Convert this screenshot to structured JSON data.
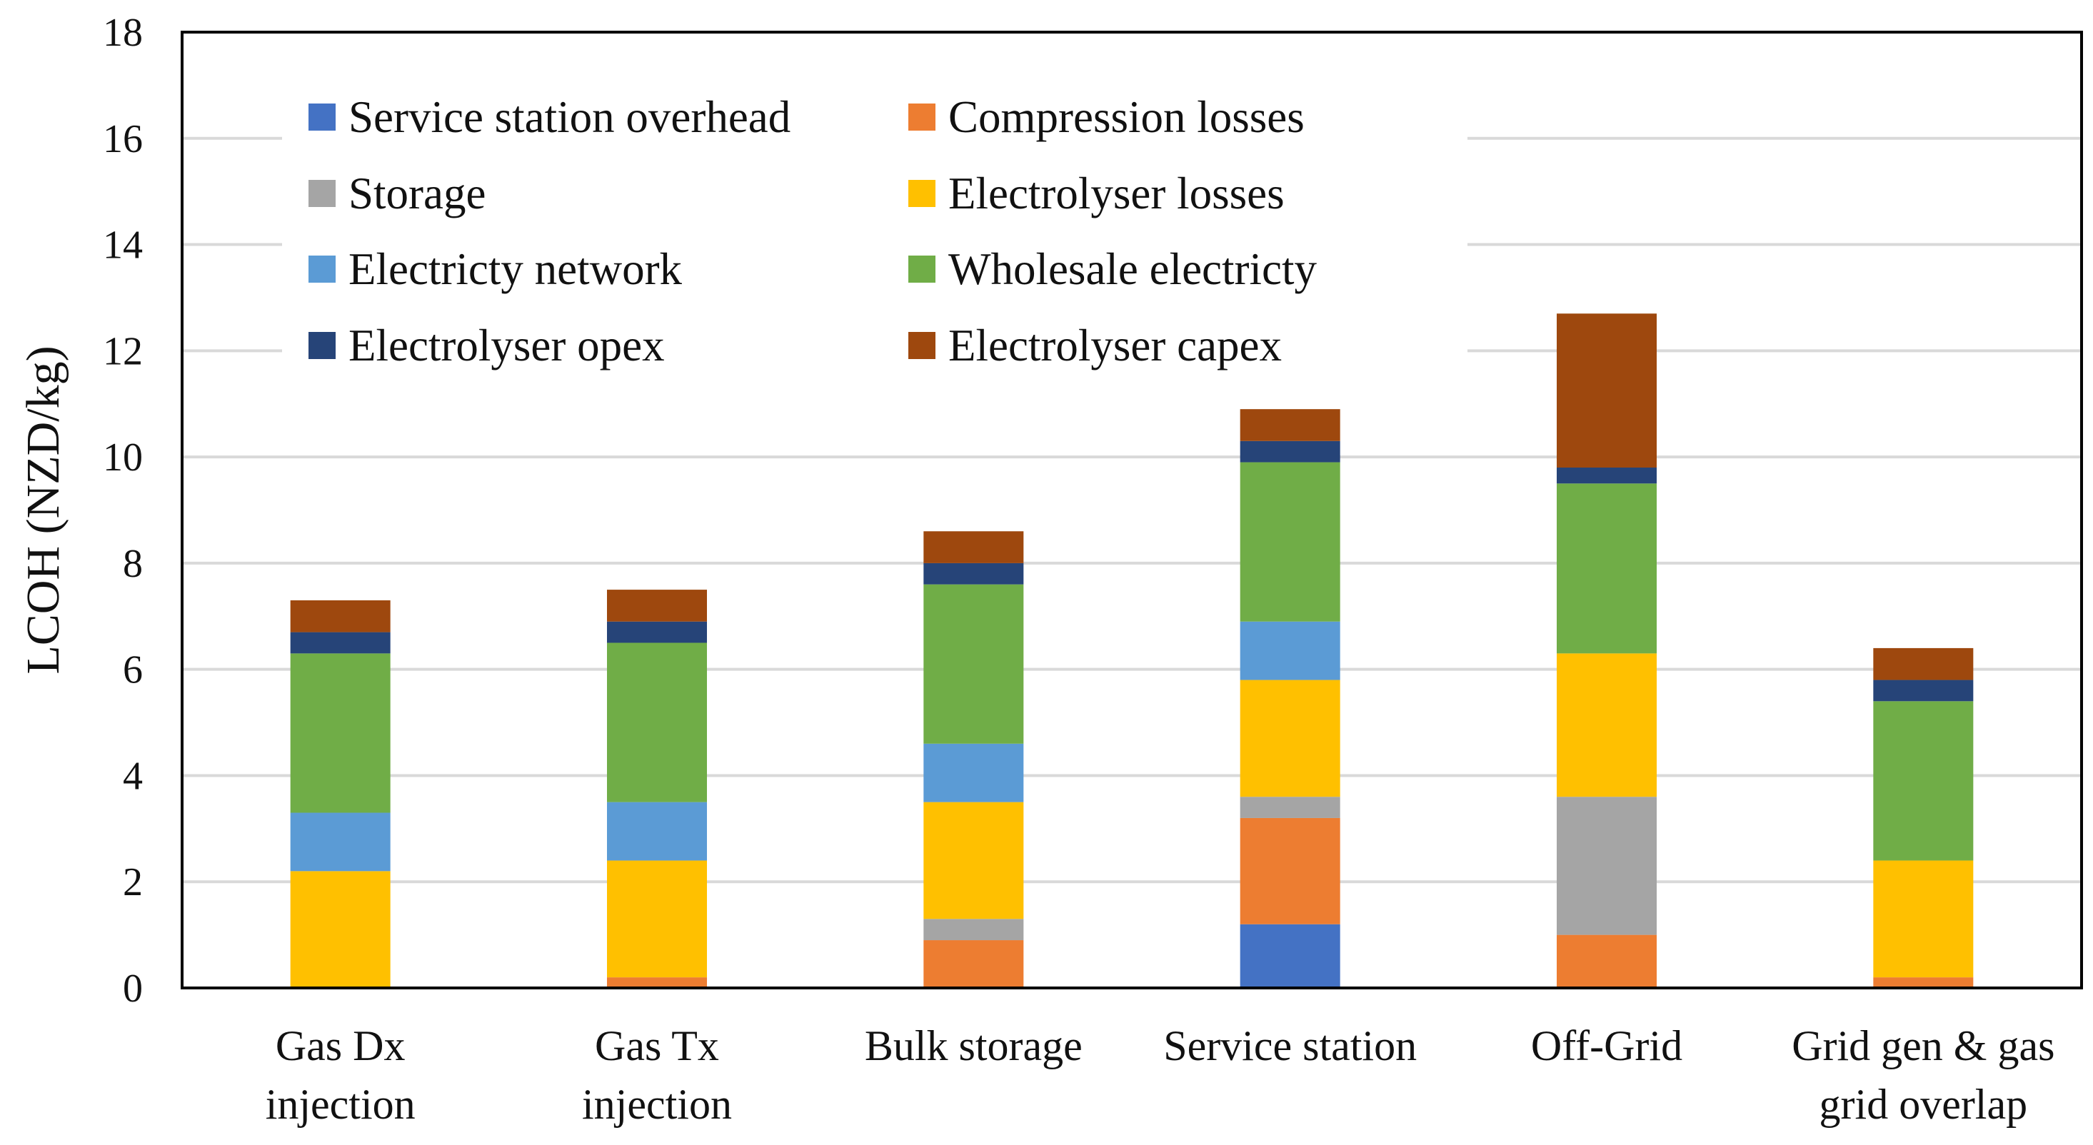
{
  "chart_data": {
    "type": "bar",
    "stacked": true,
    "title": "",
    "xlabel": "",
    "ylabel": "LCOH (NZD/kg)",
    "ylim": [
      0,
      18
    ],
    "yticks": [
      0,
      2,
      4,
      6,
      8,
      10,
      12,
      14,
      16,
      18
    ],
    "grid": true,
    "legend_position": "top-left",
    "categories": [
      [
        "Gas Dx",
        "injection"
      ],
      [
        "Gas Tx",
        "injection"
      ],
      [
        "Bulk storage"
      ],
      [
        "Service station"
      ],
      [
        "Off-Grid"
      ],
      [
        "Grid gen & gas",
        "grid overlap"
      ]
    ],
    "series": [
      {
        "name": "Service station overhead",
        "color": "#4472c4",
        "values": [
          0,
          0,
          0,
          1.2,
          0,
          0
        ]
      },
      {
        "name": "Compression losses",
        "color": "#ed7d31",
        "values": [
          0,
          0.2,
          0.9,
          2.0,
          1.0,
          0.2
        ]
      },
      {
        "name": "Storage",
        "color": "#a5a5a5",
        "values": [
          0,
          0,
          0.4,
          0.4,
          2.6,
          0
        ]
      },
      {
        "name": "Electrolyser losses",
        "color": "#ffc000",
        "values": [
          2.2,
          2.2,
          2.2,
          2.2,
          2.7,
          2.2
        ]
      },
      {
        "name": "Electricty network",
        "color": "#5b9bd5",
        "values": [
          1.1,
          1.1,
          1.1,
          1.1,
          0,
          0
        ]
      },
      {
        "name": "Wholesale electricty",
        "color": "#70ad47",
        "values": [
          3.0,
          3.0,
          3.0,
          3.0,
          3.2,
          3.0
        ]
      },
      {
        "name": "Electrolyser opex",
        "color": "#264478",
        "values": [
          0.4,
          0.4,
          0.4,
          0.4,
          0.3,
          0.4
        ]
      },
      {
        "name": "Electrolyser capex",
        "color": "#9e480e",
        "values": [
          0.6,
          0.6,
          0.6,
          0.6,
          2.9,
          0.6
        ]
      }
    ]
  }
}
